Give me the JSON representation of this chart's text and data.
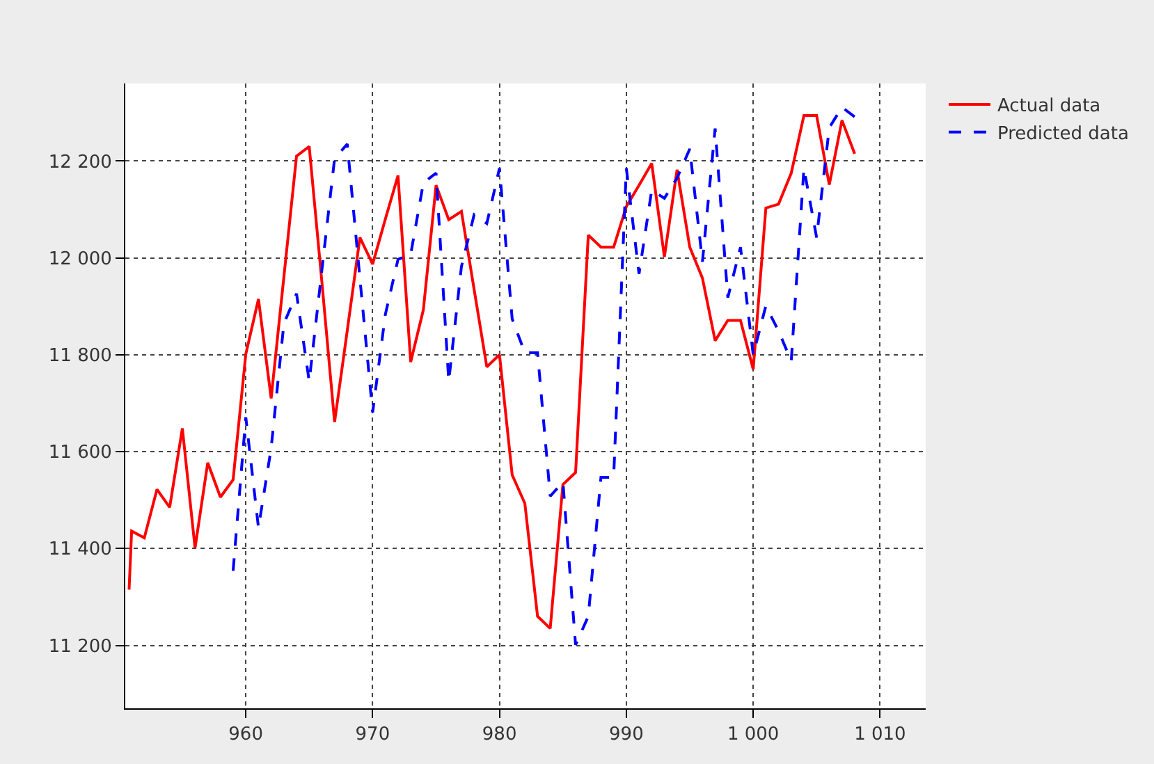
{
  "chart_data": {
    "type": "line",
    "x": [
      950.8,
      951,
      952,
      953,
      954,
      955,
      956,
      957,
      958,
      959,
      960,
      961,
      962,
      963,
      964,
      965,
      966,
      967,
      968,
      969,
      970,
      971,
      972,
      973,
      974,
      975,
      976,
      977,
      978,
      979,
      980,
      981,
      982,
      983,
      984,
      985,
      986,
      987,
      988,
      989,
      990,
      991,
      992,
      993,
      994,
      995,
      996,
      997,
      998,
      999,
      1000,
      1001,
      1002,
      1003,
      1004,
      1005,
      1006,
      1007,
      1008
    ],
    "series": [
      {
        "name": "Actual data",
        "color": "#ff0000",
        "line_style": "solid",
        "values": [
          11315,
          11436,
          11422,
          11522,
          11485,
          11648,
          11401,
          11577,
          11506,
          11542,
          11801,
          11915,
          11710,
          11960,
          12210,
          12230,
          11950,
          11661,
          11850,
          12042,
          11987,
          12080,
          12170,
          11785,
          11893,
          12150,
          12079,
          12096,
          11935,
          11775,
          11800,
          11552,
          11493,
          11260,
          11235,
          11532,
          11557,
          12047,
          12022,
          12022,
          12106,
          12150,
          12195,
          12002,
          12182,
          12022,
          11958,
          11829,
          11871,
          11871,
          11770,
          12103,
          12111,
          12175,
          12294,
          12294,
          12151,
          12284,
          12215
        ]
      },
      {
        "name": "Predicted data",
        "color": "#0000ff",
        "line_style": "dashed",
        "values": [
          null,
          null,
          null,
          null,
          null,
          null,
          null,
          null,
          null,
          11354,
          11671,
          11443,
          11607,
          11864,
          11926,
          11745,
          11975,
          12205,
          12235,
          11957,
          11681,
          11883,
          11997,
          12007,
          12155,
          12175,
          11745,
          11982,
          12089,
          12071,
          12185,
          11874,
          11804,
          11804,
          11508,
          11537,
          11201,
          11260,
          11547,
          11547,
          12185,
          11967,
          12140,
          12123,
          12165,
          12225,
          11992,
          12267,
          11918,
          12022,
          11800,
          11901,
          11849,
          11787,
          12185,
          12042,
          12269,
          12311,
          12291
        ]
      }
    ],
    "xlim": [
      950.5,
      1013.6
    ],
    "xticks": [
      960,
      970,
      980,
      990,
      {
        "value": 1000,
        "label": "1 000"
      },
      {
        "value": 1010,
        "label": "1 010"
      }
    ],
    "ylim": [
      11070,
      12360
    ],
    "yticks": [
      {
        "value": 11200,
        "label": "11 200"
      },
      {
        "value": 11400,
        "label": "11 400"
      },
      {
        "value": 11600,
        "label": "11 600"
      },
      {
        "value": 11800,
        "label": "11 800"
      },
      {
        "value": 12000,
        "label": "12 000"
      },
      {
        "value": 12200,
        "label": "12 200"
      }
    ],
    "grid": true,
    "legend": "top right",
    "marker": "none"
  }
}
